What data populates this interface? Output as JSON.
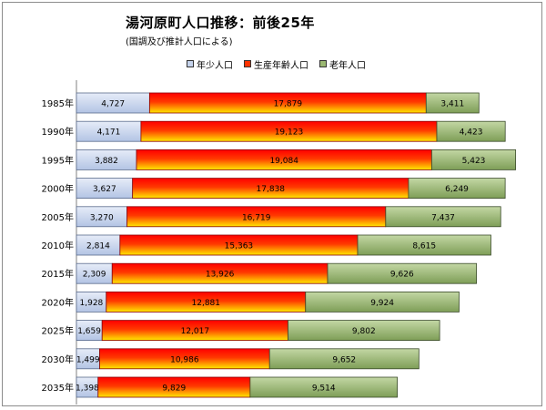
{
  "title": "湯河原町人口推移：前後25年",
  "subtitle": "(国調及び推計人口による)",
  "colors": {
    "young": "#c5d3ec",
    "young_edge": "#5a6b8c",
    "working_top": "#ffe800",
    "working_mid": "#ff0000",
    "working_edge": "#8a0000",
    "old": "#9bb872",
    "old_edge": "#3a4a2a"
  },
  "chart_data": {
    "type": "bar",
    "orientation": "horizontal",
    "stacked": true,
    "title": "湯河原町人口推移：前後25年",
    "subtitle": "(国調及び推計人口による)",
    "legend_position": "top",
    "categories": [
      "1985年",
      "1990年",
      "1995年",
      "2000年",
      "2005年",
      "2010年",
      "2015年",
      "2020年",
      "2025年",
      "2030年",
      "2035年"
    ],
    "series": [
      {
        "name": "年少人口",
        "values": [
          4727,
          4171,
          3882,
          3627,
          3270,
          2814,
          2309,
          1928,
          1659,
          1499,
          1398
        ]
      },
      {
        "name": "生産年齢人口",
        "values": [
          17879,
          19123,
          19084,
          17838,
          16719,
          15363,
          13926,
          12881,
          12017,
          10986,
          9829
        ]
      },
      {
        "name": "老年人口",
        "values": [
          3411,
          4423,
          5423,
          6249,
          7437,
          8615,
          9626,
          9924,
          9802,
          9652,
          9514
        ]
      }
    ],
    "value_labels": [
      [
        "4,727",
        "17,879",
        "3,411"
      ],
      [
        "4,171",
        "19,123",
        "4,423"
      ],
      [
        "3,882",
        "19,084",
        "5,423"
      ],
      [
        "3,627",
        "17,838",
        "6,249"
      ],
      [
        "3,270",
        "16,719",
        "7,437"
      ],
      [
        "2,814",
        "15,363",
        "8,615"
      ],
      [
        "2,309",
        "13,926",
        "9,626"
      ],
      [
        "1,928",
        "12,881",
        "9,924"
      ],
      [
        "1,659",
        "12,017",
        "9,802"
      ],
      [
        "1,499",
        "10,986",
        "9,652"
      ],
      [
        "1,398",
        "9,829",
        "9,514"
      ]
    ],
    "xlim": [
      0,
      30000
    ],
    "grid": false
  }
}
